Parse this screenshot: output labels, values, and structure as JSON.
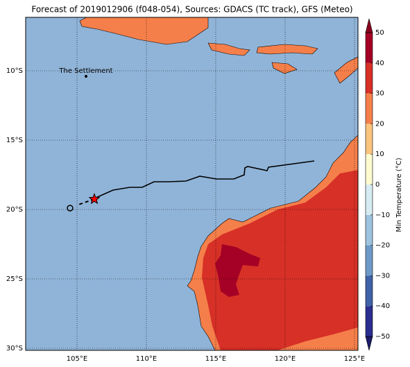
{
  "chart_data": {
    "type": "map",
    "title": "Forecast of 2019012906 (f048-054), Sources: GDACS (TC track), GFS (Meteo)",
    "xlim": [
      101.3,
      125.25
    ],
    "ylim": [
      -6.15,
      -30.15
    ],
    "xticks": [
      {
        "value": 105,
        "label": "105°E"
      },
      {
        "value": 110,
        "label": "110°E"
      },
      {
        "value": 115,
        "label": "115°E"
      },
      {
        "value": 120,
        "label": "120°E"
      },
      {
        "value": 125,
        "label": "125°E"
      }
    ],
    "yticks": [
      {
        "value": -10,
        "label": "10°S"
      },
      {
        "value": -15,
        "label": "15°S"
      },
      {
        "value": -20,
        "label": "20°S"
      },
      {
        "value": -25,
        "label": "25°S"
      },
      {
        "value": -30,
        "label": "30°S"
      }
    ],
    "grid": true,
    "ocean_color": "#90b4d8",
    "annotations": [
      {
        "text": "The Settlement",
        "lon": 105.65,
        "lat": -10.4
      }
    ],
    "track": {
      "color": "#000000",
      "lon": [
        122.1,
        118.8,
        118.7,
        117.3,
        117.1,
        117.05,
        116.3,
        115.05,
        113.85,
        112.85,
        111.55,
        110.55,
        109.7,
        108.8,
        107.6,
        106.25
      ],
      "lat": [
        -16.5,
        -16.95,
        -17.2,
        -16.9,
        -17.0,
        -17.5,
        -17.8,
        -17.8,
        -17.6,
        -17.95,
        -18.0,
        -18.0,
        -18.4,
        -18.4,
        -18.6,
        -19.2
      ]
    },
    "forecast_track": {
      "lon": [
        106.25,
        105.1
      ],
      "lat": [
        -19.25,
        -19.65
      ]
    },
    "current_position": {
      "lon": 106.25,
      "lat": -19.25,
      "color": "#ff0000"
    },
    "initial_position": {
      "lon": 104.5,
      "lat": -19.9
    },
    "colorbar": {
      "label": "Min Temperature (°C)",
      "lim": [
        -50,
        50
      ],
      "ticks": [
        {
          "value": -50,
          "label": "−50"
        },
        {
          "value": -40,
          "label": "−40"
        },
        {
          "value": -30,
          "label": "−30"
        },
        {
          "value": -20,
          "label": "−20"
        },
        {
          "value": -10,
          "label": "−10"
        },
        0,
        10,
        20,
        30,
        40,
        50
      ],
      "colors": [
        "#2b2e8f",
        "#3f62a8",
        "#6d99c8",
        "#9dc3df",
        "#d6ecf2",
        "#fffbd0",
        "#fdc47e",
        "#f57f4a",
        "#d73027",
        "#a50026"
      ],
      "extend_colors": [
        "#1c1c6a",
        "#8a0020"
      ]
    }
  }
}
